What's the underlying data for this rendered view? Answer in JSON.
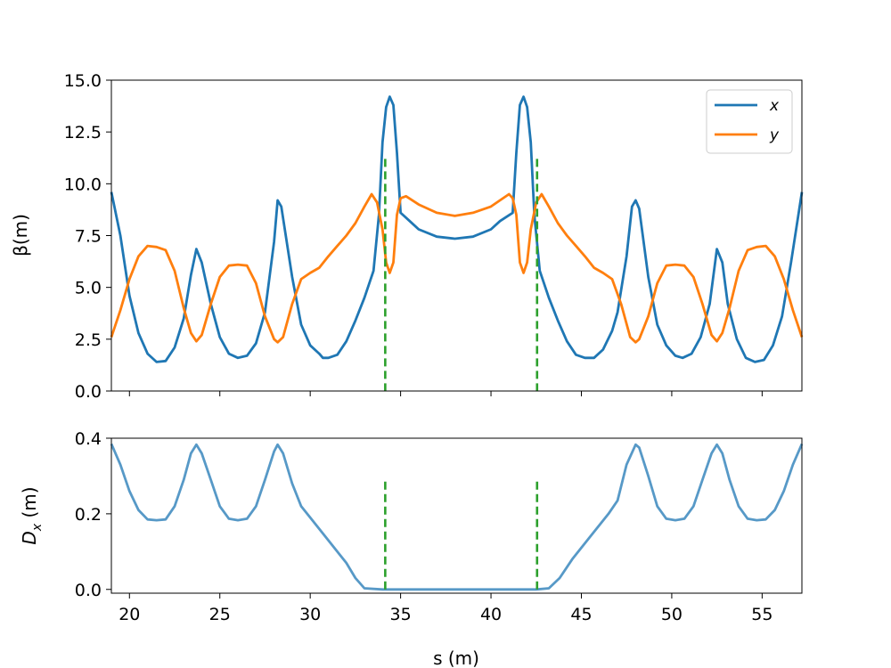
{
  "colors": {
    "x": "#1f77b4",
    "y": "#ff7f0e",
    "marker": "#2ca02c",
    "dispersion": "#1f77b4"
  },
  "chart_data": [
    {
      "type": "line",
      "xlim": [
        19,
        57.2
      ],
      "ylim": [
        0,
        15
      ],
      "ylabel": "β(m)",
      "xticks_labels_shown": false,
      "yticks": [
        "0.0",
        "2.5",
        "5.0",
        "7.5",
        "10.0",
        "12.5",
        "15.0"
      ],
      "ytick_values": [
        0,
        2.5,
        5,
        7.5,
        10,
        12.5,
        15
      ],
      "legend": {
        "placement": "upper right",
        "entries": [
          "x",
          "y"
        ]
      },
      "markers": [
        {
          "x": 34.15,
          "y_top": 11.2
        },
        {
          "x": 42.55,
          "y_top": 11.2
        }
      ],
      "series": [
        {
          "name": "x",
          "color": "#1f77b4",
          "points": [
            [
              19,
              9.6
            ],
            [
              19.5,
              7.5
            ],
            [
              20,
              4.6
            ],
            [
              20.5,
              2.8
            ],
            [
              21,
              1.8
            ],
            [
              21.5,
              1.4
            ],
            [
              22,
              1.45
            ],
            [
              22.5,
              2.1
            ],
            [
              23,
              3.5
            ],
            [
              23.4,
              5.6
            ],
            [
              23.7,
              6.85
            ],
            [
              24,
              6.2
            ],
            [
              24.5,
              4.2
            ],
            [
              25,
              2.6
            ],
            [
              25.5,
              1.8
            ],
            [
              26,
              1.6
            ],
            [
              26.5,
              1.7
            ],
            [
              27,
              2.3
            ],
            [
              27.5,
              3.8
            ],
            [
              28,
              7.2
            ],
            [
              28.2,
              9.2
            ],
            [
              28.4,
              8.9
            ],
            [
              29,
              5.5
            ],
            [
              29.5,
              3.2
            ],
            [
              30,
              2.2
            ],
            [
              30.5,
              1.8
            ],
            [
              30.7,
              1.6
            ],
            [
              31,
              1.6
            ],
            [
              31.5,
              1.75
            ],
            [
              32,
              2.4
            ],
            [
              32.5,
              3.4
            ],
            [
              33,
              4.5
            ],
            [
              33.5,
              5.8
            ],
            [
              33.8,
              8.5
            ],
            [
              34,
              12
            ],
            [
              34.2,
              13.7
            ],
            [
              34.4,
              14.2
            ],
            [
              34.6,
              13.8
            ],
            [
              34.8,
              11.5
            ],
            [
              35,
              8.6
            ],
            [
              35.5,
              8.2
            ],
            [
              36,
              7.8
            ],
            [
              37,
              7.45
            ],
            [
              38,
              7.35
            ],
            [
              39,
              7.45
            ],
            [
              40,
              7.8
            ],
            [
              40.5,
              8.2
            ],
            [
              41.2,
              8.6
            ],
            [
              41.4,
              11.5
            ],
            [
              41.6,
              13.8
            ],
            [
              41.8,
              14.2
            ],
            [
              42,
              13.7
            ],
            [
              42.2,
              12
            ],
            [
              42.4,
              8.5
            ],
            [
              42.7,
              5.8
            ],
            [
              43.2,
              4.5
            ],
            [
              43.7,
              3.4
            ],
            [
              44.2,
              2.4
            ],
            [
              44.7,
              1.75
            ],
            [
              45.2,
              1.6
            ],
            [
              45.5,
              1.6
            ],
            [
              45.7,
              1.6
            ],
            [
              46.2,
              2
            ],
            [
              46.7,
              2.9
            ],
            [
              47,
              3.8
            ],
            [
              47.5,
              6.5
            ],
            [
              47.8,
              8.9
            ],
            [
              48,
              9.2
            ],
            [
              48.2,
              8.8
            ],
            [
              48.7,
              5.5
            ],
            [
              49.2,
              3.2
            ],
            [
              49.7,
              2.2
            ],
            [
              50.2,
              1.7
            ],
            [
              50.6,
              1.6
            ],
            [
              51.1,
              1.8
            ],
            [
              51.6,
              2.6
            ],
            [
              52.1,
              4.2
            ],
            [
              52.5,
              6.85
            ],
            [
              52.8,
              6.2
            ],
            [
              53.1,
              4.2
            ],
            [
              53.6,
              2.5
            ],
            [
              54.1,
              1.6
            ],
            [
              54.6,
              1.4
            ],
            [
              55.1,
              1.5
            ],
            [
              55.6,
              2.2
            ],
            [
              56.1,
              3.6
            ],
            [
              56.6,
              6.2
            ],
            [
              57.2,
              9.6
            ]
          ]
        },
        {
          "name": "y",
          "color": "#ff7f0e",
          "points": [
            [
              19,
              2.6
            ],
            [
              19.5,
              3.9
            ],
            [
              20,
              5.4
            ],
            [
              20.5,
              6.5
            ],
            [
              21,
              7
            ],
            [
              21.5,
              6.95
            ],
            [
              22,
              6.8
            ],
            [
              22.5,
              5.8
            ],
            [
              23,
              4
            ],
            [
              23.4,
              2.8
            ],
            [
              23.7,
              2.4
            ],
            [
              24,
              2.7
            ],
            [
              24.5,
              4.2
            ],
            [
              25,
              5.5
            ],
            [
              25.5,
              6.05
            ],
            [
              26,
              6.1
            ],
            [
              26.5,
              6.05
            ],
            [
              27,
              5.2
            ],
            [
              27.5,
              3.6
            ],
            [
              28,
              2.5
            ],
            [
              28.2,
              2.35
            ],
            [
              28.5,
              2.6
            ],
            [
              29,
              4.2
            ],
            [
              29.5,
              5.4
            ],
            [
              30,
              5.7
            ],
            [
              30.5,
              5.95
            ],
            [
              31,
              6.5
            ],
            [
              31.5,
              7
            ],
            [
              32,
              7.5
            ],
            [
              32.5,
              8.1
            ],
            [
              33,
              8.9
            ],
            [
              33.4,
              9.5
            ],
            [
              33.7,
              9.1
            ],
            [
              34,
              7.8
            ],
            [
              34.2,
              6.2
            ],
            [
              34.4,
              5.7
            ],
            [
              34.6,
              6.2
            ],
            [
              34.8,
              8.5
            ],
            [
              35,
              9.3
            ],
            [
              35.3,
              9.4
            ],
            [
              36,
              9
            ],
            [
              37,
              8.6
            ],
            [
              38,
              8.45
            ],
            [
              39,
              8.6
            ],
            [
              40,
              8.9
            ],
            [
              40.5,
              9.2
            ],
            [
              41,
              9.5
            ],
            [
              41.2,
              9.3
            ],
            [
              41.4,
              8.5
            ],
            [
              41.6,
              6.2
            ],
            [
              41.8,
              5.7
            ],
            [
              42,
              6.2
            ],
            [
              42.2,
              7.8
            ],
            [
              42.5,
              9.1
            ],
            [
              42.8,
              9.5
            ],
            [
              43.2,
              8.9
            ],
            [
              43.7,
              8.1
            ],
            [
              44.2,
              7.5
            ],
            [
              44.7,
              7
            ],
            [
              45.2,
              6.5
            ],
            [
              45.7,
              5.95
            ],
            [
              46.2,
              5.7
            ],
            [
              46.7,
              5.4
            ],
            [
              47.2,
              4.2
            ],
            [
              47.7,
              2.6
            ],
            [
              48,
              2.35
            ],
            [
              48.2,
              2.5
            ],
            [
              48.7,
              3.6
            ],
            [
              49.2,
              5.2
            ],
            [
              49.7,
              6.05
            ],
            [
              50.2,
              6.1
            ],
            [
              50.7,
              6.05
            ],
            [
              51.2,
              5.5
            ],
            [
              51.7,
              4.2
            ],
            [
              52.2,
              2.7
            ],
            [
              52.5,
              2.4
            ],
            [
              52.8,
              2.8
            ],
            [
              53.2,
              4
            ],
            [
              53.7,
              5.8
            ],
            [
              54.2,
              6.8
            ],
            [
              54.7,
              6.95
            ],
            [
              55.2,
              7
            ],
            [
              55.7,
              6.5
            ],
            [
              56.2,
              5.4
            ],
            [
              56.7,
              3.9
            ],
            [
              57.2,
              2.6
            ]
          ]
        }
      ]
    },
    {
      "type": "line",
      "xlim": [
        19,
        57.2
      ],
      "ylim": [
        -0.01,
        0.4
      ],
      "xlabel": "s (m)",
      "ylabel": "D",
      "ylabel_sub": "x",
      "ylabel_rest": " (m)",
      "xticks": [
        "20",
        "25",
        "30",
        "35",
        "40",
        "45",
        "50",
        "55"
      ],
      "xtick_values": [
        20,
        25,
        30,
        35,
        40,
        45,
        50,
        55
      ],
      "yticks": [
        "0.0",
        "0.2",
        "0.4"
      ],
      "ytick_values": [
        0,
        0.2,
        0.4
      ],
      "markers": [
        {
          "x": 34.15,
          "y_top": 0.285
        },
        {
          "x": 42.55,
          "y_top": 0.285
        }
      ],
      "series": [
        {
          "color": "#1f77b4",
          "points": [
            [
              19,
              0.385
            ],
            [
              19.5,
              0.33
            ],
            [
              20,
              0.26
            ],
            [
              20.5,
              0.21
            ],
            [
              21,
              0.185
            ],
            [
              21.5,
              0.183
            ],
            [
              22,
              0.185
            ],
            [
              22.5,
              0.22
            ],
            [
              23,
              0.29
            ],
            [
              23.4,
              0.36
            ],
            [
              23.7,
              0.383
            ],
            [
              24,
              0.36
            ],
            [
              24.5,
              0.29
            ],
            [
              25,
              0.22
            ],
            [
              25.5,
              0.187
            ],
            [
              26,
              0.183
            ],
            [
              26.5,
              0.187
            ],
            [
              27,
              0.22
            ],
            [
              27.5,
              0.29
            ],
            [
              28,
              0.365
            ],
            [
              28.2,
              0.383
            ],
            [
              28.5,
              0.36
            ],
            [
              29,
              0.28
            ],
            [
              29.5,
              0.22
            ],
            [
              30,
              0.19
            ],
            [
              31,
              0.13
            ],
            [
              32,
              0.07
            ],
            [
              32.5,
              0.03
            ],
            [
              33,
              0.003
            ],
            [
              34,
              0
            ],
            [
              42.5,
              0
            ],
            [
              43.2,
              0.003
            ],
            [
              43.8,
              0.03
            ],
            [
              44.5,
              0.08
            ],
            [
              45.5,
              0.14
            ],
            [
              46.5,
              0.2
            ],
            [
              47,
              0.235
            ],
            [
              47.5,
              0.33
            ],
            [
              48,
              0.383
            ],
            [
              48.2,
              0.375
            ],
            [
              48.7,
              0.3
            ],
            [
              49.2,
              0.22
            ],
            [
              49.7,
              0.187
            ],
            [
              50.2,
              0.183
            ],
            [
              50.7,
              0.187
            ],
            [
              51.2,
              0.22
            ],
            [
              51.7,
              0.29
            ],
            [
              52.2,
              0.36
            ],
            [
              52.5,
              0.383
            ],
            [
              52.8,
              0.36
            ],
            [
              53.2,
              0.29
            ],
            [
              53.7,
              0.22
            ],
            [
              54.2,
              0.187
            ],
            [
              54.7,
              0.183
            ],
            [
              55.2,
              0.185
            ],
            [
              55.7,
              0.21
            ],
            [
              56.2,
              0.26
            ],
            [
              56.7,
              0.33
            ],
            [
              57.2,
              0.385
            ]
          ]
        }
      ]
    }
  ]
}
